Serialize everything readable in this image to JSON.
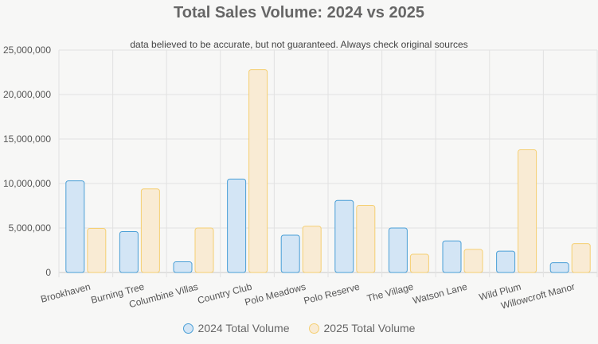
{
  "chart_data": {
    "type": "bar",
    "title": "Total Sales Volume: 2024 vs 2025",
    "subtitle": "data believed to be accurate, but not guaranteed. Always check original sources",
    "categories": [
      "Brookhaven",
      "Burning Tree",
      "Columbine Villas",
      "Country Club",
      "Polo Meadows",
      "Polo Reserve",
      "The Village",
      "Watson Lane",
      "Wild Plum",
      "Willowcroft Manor"
    ],
    "series": [
      {
        "name": "2024 Total Volume",
        "values": [
          10300000,
          4600000,
          1200000,
          10500000,
          4200000,
          8100000,
          5000000,
          3550000,
          2400000,
          1100000
        ],
        "fill": "#d3e5f5",
        "stroke": "#4a9fd6"
      },
      {
        "name": "2025 Total Volume",
        "values": [
          4950000,
          9400000,
          5000000,
          22800000,
          5200000,
          7550000,
          2050000,
          2600000,
          13800000,
          3250000
        ],
        "fill": "#f9ebd4",
        "stroke": "#f5cf72"
      }
    ],
    "ylim": [
      0,
      25000000
    ],
    "yticks": [
      "0",
      "5,000,000",
      "10,000,000",
      "15,000,000",
      "20,000,000",
      "25,000,000"
    ],
    "grid": true,
    "legend": "bottom"
  }
}
